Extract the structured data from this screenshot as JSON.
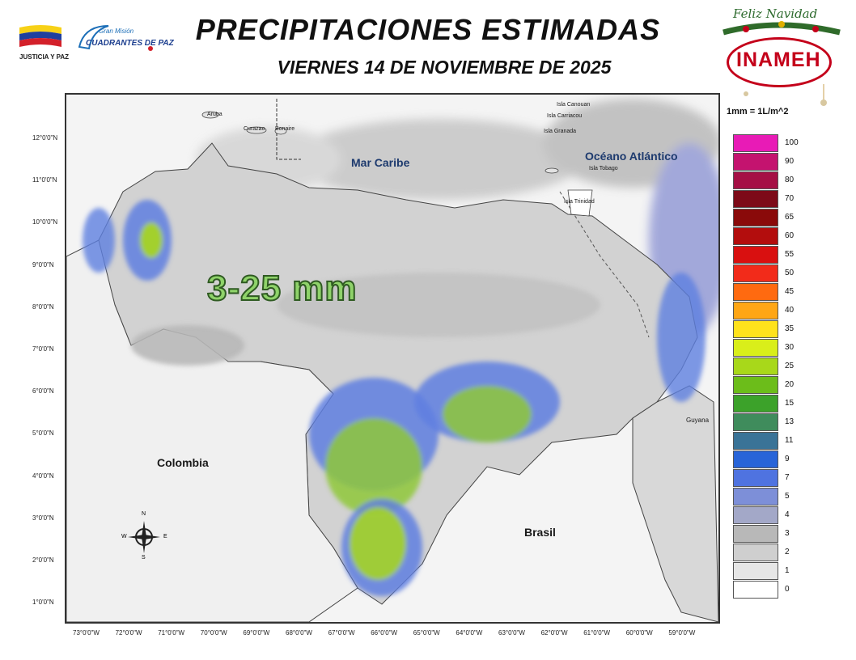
{
  "header": {
    "title": "PRECIPITACIONES ESTIMADAS",
    "subtitle": "VIERNES 14 DE NOVIEMBRE  DE 2025"
  },
  "logos": {
    "left_text": "JUSTICIA Y PAZ",
    "mission_line1": "Gran Misión",
    "mission_line2": "CUADRANTES DE PAZ",
    "greeting": "Feliz Navidad",
    "agency": "INAMEH"
  },
  "map": {
    "overlay_label": "3-25 mm",
    "lat_ticks": [
      "12°0'0\"N",
      "11°0'0\"N",
      "10°0'0\"N",
      "9°0'0\"N",
      "8°0'0\"N",
      "7°0'0\"N",
      "6°0'0\"N",
      "5°0'0\"N",
      "4°0'0\"N",
      "3°0'0\"N",
      "2°0'0\"N",
      "1°0'0\"N"
    ],
    "lon_ticks": [
      "73°0'0\"W",
      "72°0'0\"W",
      "71°0'0\"W",
      "70°0'0\"W",
      "69°0'0\"W",
      "68°0'0\"W",
      "67°0'0\"W",
      "66°0'0\"W",
      "65°0'0\"W",
      "64°0'0\"W",
      "63°0'0\"W",
      "62°0'0\"W",
      "61°0'0\"W",
      "60°0'0\"W",
      "59°0'0\"W"
    ],
    "places": {
      "mar_caribe": "Mar Caribe",
      "oceano": "Océano Atlántico",
      "colombia": "Colombia",
      "brasil": "Brasil",
      "guyana": "Guyana",
      "aruba": "Aruba",
      "curazao": "Curazao",
      "bonaire": "Bonaire",
      "canouan": "Isla Canouan",
      "carriacou": "Isla Carriacou",
      "granada": "Isla Granada",
      "tobago": "Isla Tobago",
      "trinidad": "Isla Trinidad"
    },
    "compass": {
      "n": "N",
      "s": "S",
      "e": "E",
      "w": "W"
    }
  },
  "legend": {
    "unit": "1mm = 1L/m^2",
    "levels": [
      {
        "label": "100",
        "color": "#e81bb6"
      },
      {
        "label": "90",
        "color": "#c4136f"
      },
      {
        "label": "80",
        "color": "#a50f45"
      },
      {
        "label": "70",
        "color": "#7d0a18"
      },
      {
        "label": "65",
        "color": "#8a0a0a"
      },
      {
        "label": "60",
        "color": "#b30d0d"
      },
      {
        "label": "55",
        "color": "#d91010"
      },
      {
        "label": "50",
        "color": "#f22b1a"
      },
      {
        "label": "45",
        "color": "#ff6a10"
      },
      {
        "label": "40",
        "color": "#ffa615"
      },
      {
        "label": "35",
        "color": "#ffe21c"
      },
      {
        "label": "30",
        "color": "#d9ee1a"
      },
      {
        "label": "25",
        "color": "#a8d81a"
      },
      {
        "label": "20",
        "color": "#6cbd1a"
      },
      {
        "label": "15",
        "color": "#3ca22a"
      },
      {
        "label": "13",
        "color": "#3f8c5c"
      },
      {
        "label": "11",
        "color": "#3a7397"
      },
      {
        "label": "9",
        "color": "#2864d8"
      },
      {
        "label": "7",
        "color": "#4f73e0"
      },
      {
        "label": "5",
        "color": "#7d8fd8"
      },
      {
        "label": "4",
        "color": "#a3a8c8"
      },
      {
        "label": "3",
        "color": "#b8b8b8"
      },
      {
        "label": "2",
        "color": "#cfcfcf"
      },
      {
        "label": "1",
        "color": "#e6e6e6"
      },
      {
        "label": "0",
        "color": "#ffffff"
      }
    ]
  }
}
